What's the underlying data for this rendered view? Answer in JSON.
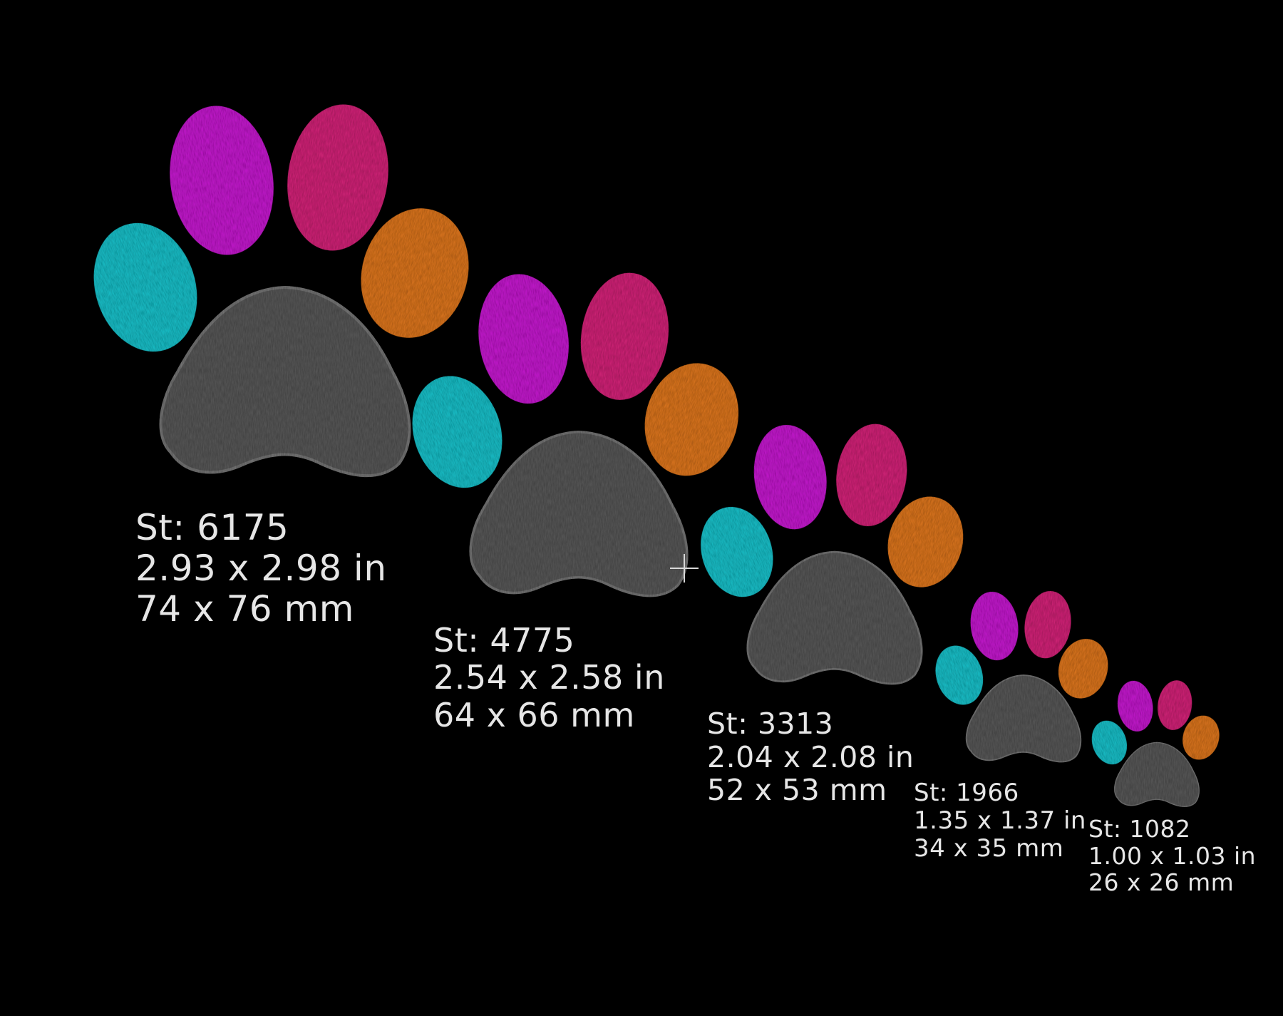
{
  "colors": {
    "background": "#000000",
    "toe_cyan": "#1fc3cc",
    "toe_purple": "#c81fd2",
    "toe_pink": "#d6287a",
    "toe_orange": "#e07820",
    "pad_gray": "#5a5a5a",
    "label_text": "#e6e6e6"
  },
  "designs": [
    {
      "stitches": "St: 6175",
      "size_in": "2.93 x 2.98 in",
      "size_mm": "74 x 76 mm"
    },
    {
      "stitches": "St: 4775",
      "size_in": "2.54 x 2.58 in",
      "size_mm": "64 x 66 mm"
    },
    {
      "stitches": "St: 3313",
      "size_in": "2.04 x 2.08 in",
      "size_mm": "52 x 53 mm"
    },
    {
      "stitches": "St: 1966",
      "size_in": "1.35 x 1.37 in",
      "size_mm": "34 x 35 mm"
    },
    {
      "stitches": "St: 1082",
      "size_in": "1.00 x 1.03 in",
      "size_mm": "26 x 26 mm"
    }
  ],
  "cursor_icon": "crosshair-cursor-icon"
}
